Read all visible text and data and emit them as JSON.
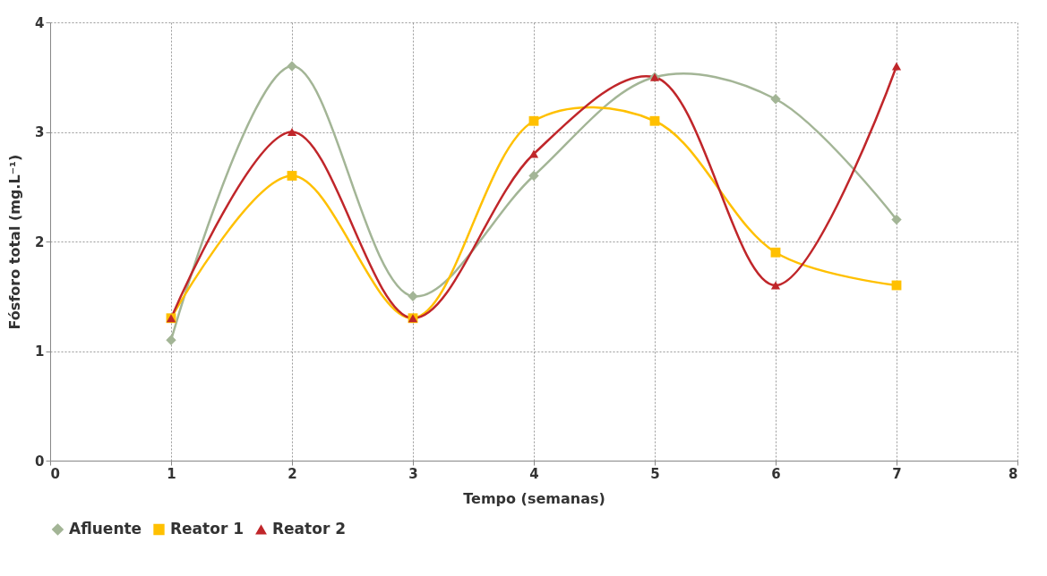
{
  "chart_data": {
    "type": "line",
    "xlabel": "Tempo (semanas)",
    "ylabel": "Fósforo total (mg.L⁻¹)",
    "x": [
      1,
      2,
      3,
      4,
      5,
      6,
      7
    ],
    "series": [
      {
        "name": "Afluente",
        "color": "#a3b596",
        "marker": "diamond",
        "values": [
          1.1,
          3.6,
          1.5,
          2.6,
          3.5,
          3.3,
          2.2
        ]
      },
      {
        "name": "Reator 1",
        "color": "#ffc000",
        "marker": "square",
        "values": [
          1.3,
          2.6,
          1.3,
          3.1,
          3.1,
          1.9,
          1.6
        ]
      },
      {
        "name": "Reator 2",
        "color": "#c0262a",
        "marker": "triangle",
        "values": [
          1.3,
          3.0,
          1.3,
          2.8,
          3.5,
          1.6,
          3.6
        ]
      }
    ],
    "xlim": [
      0,
      8
    ],
    "xticks": [
      0,
      1,
      2,
      3,
      4,
      5,
      6,
      7,
      8
    ],
    "ylim": [
      0,
      4
    ],
    "yticks": [
      0,
      1,
      2,
      3,
      4
    ],
    "grid": true,
    "legend": "bottom"
  }
}
